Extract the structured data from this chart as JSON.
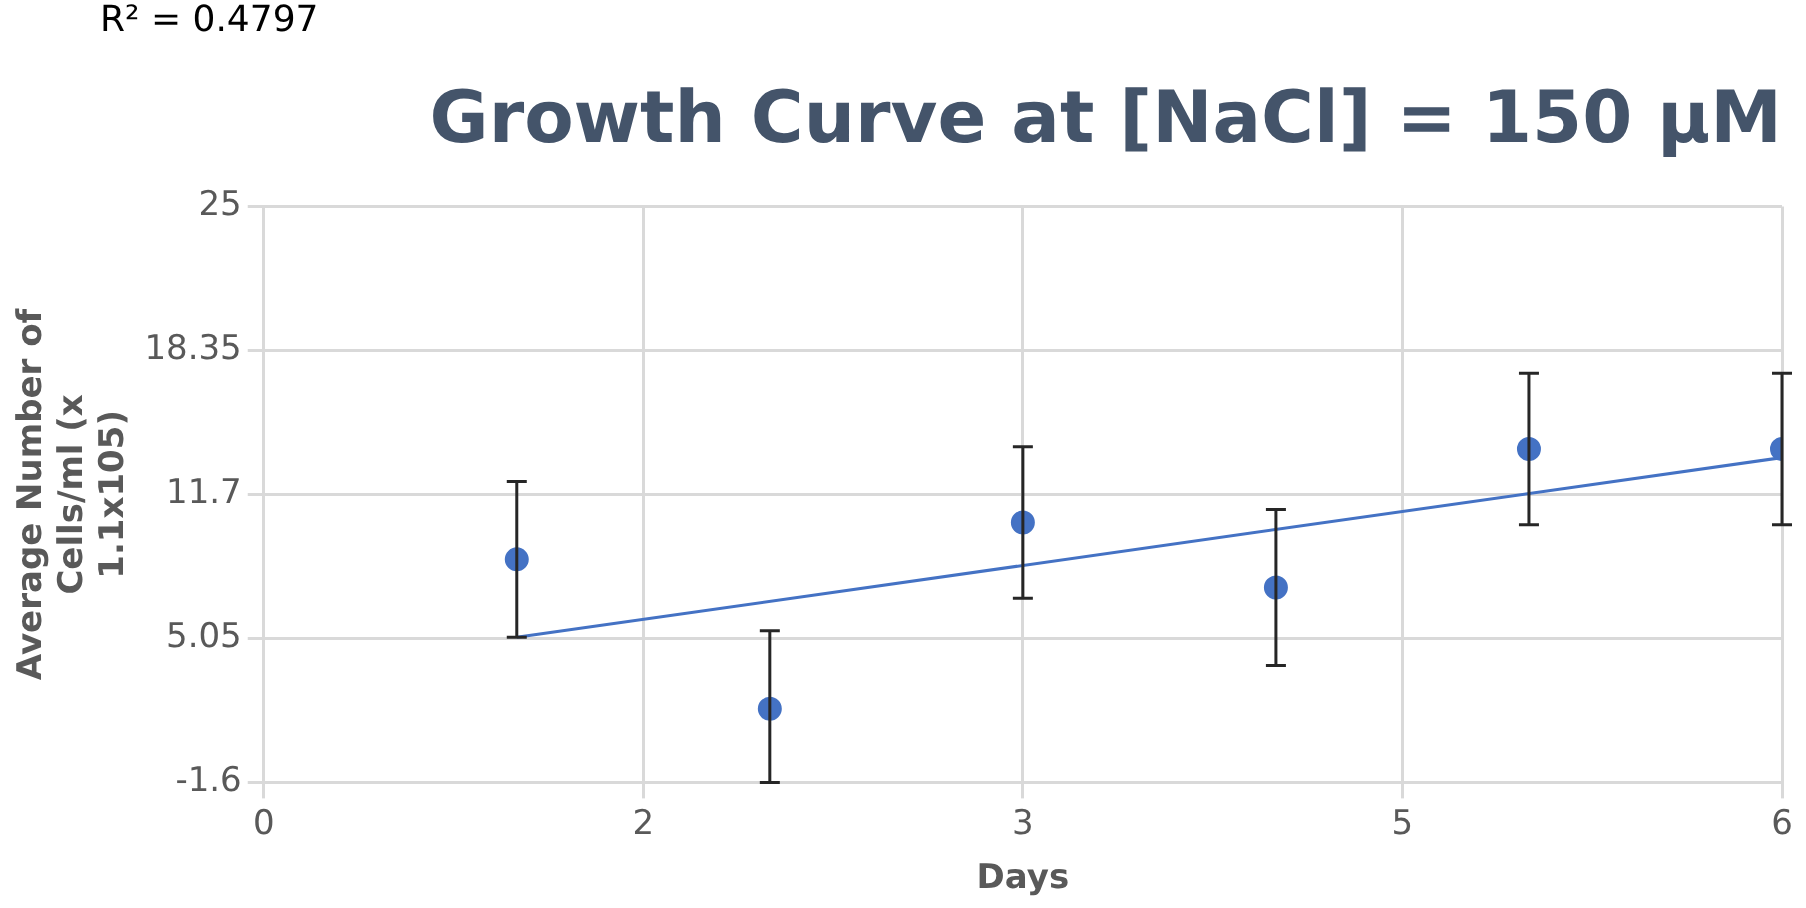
{
  "chart_data": {
    "type": "scatter",
    "title": "Growth Curve at [NaCl] = 150 μM",
    "xlabel": "Days",
    "ylabel": "Average Number of Cells/ml (x 1.1x105)",
    "annotations": [
      "R² = 0.4797"
    ],
    "x": [
      1,
      2,
      3,
      4,
      5,
      6
    ],
    "series": [
      {
        "type": "scatter",
        "color": "#4472c4",
        "marker": "circle",
        "values": [
          8.7,
          1.8,
          10.4,
          7.4,
          13.8,
          13.8
        ],
        "errors": [
          3.6,
          [
            -1.6,
            5.4
          ],
          3.5,
          3.6,
          3.5,
          3.5
        ]
      },
      {
        "type": "line",
        "color": "#4472c4",
        "marker": "none",
        "x": [
          1,
          6
        ],
        "values": [
          5.1,
          13.4
        ]
      }
    ],
    "xlim": [
      0,
      6
    ],
    "xticks": [
      0,
      {
        "value": 1.5,
        "label": "2"
      },
      3,
      {
        "value": 4.5,
        "label": "5"
      },
      6
    ],
    "ylim": [
      -1.6,
      25
    ],
    "yticks": [
      -1.6,
      5.05,
      11.7,
      18.35,
      25
    ],
    "grid": true,
    "legend": false
  }
}
